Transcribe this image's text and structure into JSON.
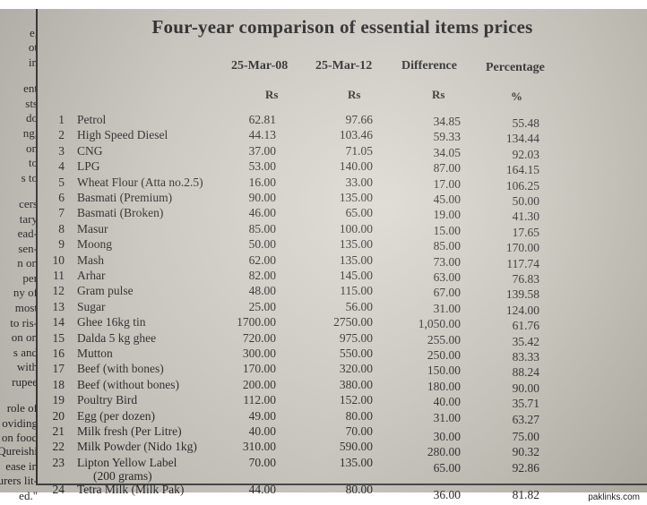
{
  "title": "Four-year comparison of essential items prices",
  "columns": {
    "date1": "25-Mar-08",
    "date2": "25-Mar-12",
    "difference": "Difference",
    "percentage": "Percentage"
  },
  "units": {
    "date1": "Rs",
    "date2": "Rs",
    "difference": "Rs",
    "percentage": "%"
  },
  "rows": [
    {
      "no": "1",
      "item": "Petrol",
      "p08": "62.81",
      "p12": "97.66",
      "diff": "34.85",
      "pct": "55.48"
    },
    {
      "no": "2",
      "item": "High Speed Diesel",
      "p08": "44.13",
      "p12": "103.46",
      "diff": "59.33",
      "pct": "134.44"
    },
    {
      "no": "3",
      "item": "CNG",
      "p08": "37.00",
      "p12": "71.05",
      "diff": "34.05",
      "pct": "92.03"
    },
    {
      "no": "4",
      "item": "LPG",
      "p08": "53.00",
      "p12": "140.00",
      "diff": "87.00",
      "pct": "164.15"
    },
    {
      "no": "5",
      "item": "Wheat Flour (Atta no.2.5)",
      "p08": "16.00",
      "p12": "33.00",
      "diff": "17.00",
      "pct": "106.25"
    },
    {
      "no": "6",
      "item": "Basmati (Premium)",
      "p08": "90.00",
      "p12": "135.00",
      "diff": "45.00",
      "pct": "50.00"
    },
    {
      "no": "7",
      "item": "Basmati (Broken)",
      "p08": "46.00",
      "p12": "65.00",
      "diff": "19.00",
      "pct": "41.30"
    },
    {
      "no": "8",
      "item": "Masur",
      "p08": "85.00",
      "p12": "100.00",
      "diff": "15.00",
      "pct": "17.65"
    },
    {
      "no": "9",
      "item": "Moong",
      "p08": "50.00",
      "p12": "135.00",
      "diff": "85.00",
      "pct": "170.00"
    },
    {
      "no": "10",
      "item": "Mash",
      "p08": "62.00",
      "p12": "135.00",
      "diff": "73.00",
      "pct": "117.74"
    },
    {
      "no": "11",
      "item": "Arhar",
      "p08": "82.00",
      "p12": "145.00",
      "diff": "63.00",
      "pct": "76.83"
    },
    {
      "no": "12",
      "item": "Gram pulse",
      "p08": "48.00",
      "p12": "115.00",
      "diff": "67.00",
      "pct": "139.58"
    },
    {
      "no": "13",
      "item": "Sugar",
      "p08": "25.00",
      "p12": "56.00",
      "diff": "31.00",
      "pct": "124.00"
    },
    {
      "no": "14",
      "item": "Ghee 16kg tin",
      "p08": "1700.00",
      "p12": "2750.00",
      "diff": "1,050.00",
      "pct": "61.76"
    },
    {
      "no": "15",
      "item": "Dalda 5 kg ghee",
      "p08": "720.00",
      "p12": "975.00",
      "diff": "255.00",
      "pct": "35.42"
    },
    {
      "no": "16",
      "item": "Mutton",
      "p08": "300.00",
      "p12": "550.00",
      "diff": "250.00",
      "pct": "83.33"
    },
    {
      "no": "17",
      "item": "Beef (with bones)",
      "p08": "170.00",
      "p12": "320.00",
      "diff": "150.00",
      "pct": "88.24"
    },
    {
      "no": "18",
      "item": "Beef (without bones)",
      "p08": "200.00",
      "p12": "380.00",
      "diff": "180.00",
      "pct": "90.00"
    },
    {
      "no": "19",
      "item": "Poultry Bird",
      "p08": "112.00",
      "p12": "152.00",
      "diff": "40.00",
      "pct": "35.71"
    },
    {
      "no": "20",
      "item": "Egg (per dozen)",
      "p08": "49.00",
      "p12": "80.00",
      "diff": "31.00",
      "pct": "63.27"
    },
    {
      "no": "21",
      "item": "Milk fresh (Per Litre)",
      "p08": "40.00",
      "p12": "70.00",
      "diff": "30.00",
      "pct": "75.00"
    },
    {
      "no": "22",
      "item": "Milk Powder (Nido 1kg)",
      "p08": "310.00",
      "p12": "590.00",
      "diff": "280.00",
      "pct": "90.32"
    },
    {
      "no": "23",
      "item": "Lipton Yellow Label",
      "item2": "(200 grams)",
      "p08": "70.00",
      "p12": "135.00",
      "diff": "65.00",
      "pct": "92.86"
    },
    {
      "no": "24",
      "item": "Tetra Milk (Milk Pak)",
      "p08": "44.00",
      "p12": "80.00",
      "diff": "36.00",
      "pct": "81.82"
    }
  ],
  "left_column_text": [
    "e,",
    "ot",
    "in",
    "ent",
    "sts",
    "do",
    "ng,",
    "on",
    "to",
    "s to",
    "cers",
    "tary",
    "ead-",
    "sen-",
    "n on",
    "per",
    "ny of",
    "most",
    "to ris-",
    "on on",
    "s and",
    "with",
    "rupee",
    "role of",
    "oviding",
    "on food",
    "Qureishi",
    "ease in",
    "urers lit-",
    "ed.\""
  ],
  "watermark": "paklinks.com"
}
